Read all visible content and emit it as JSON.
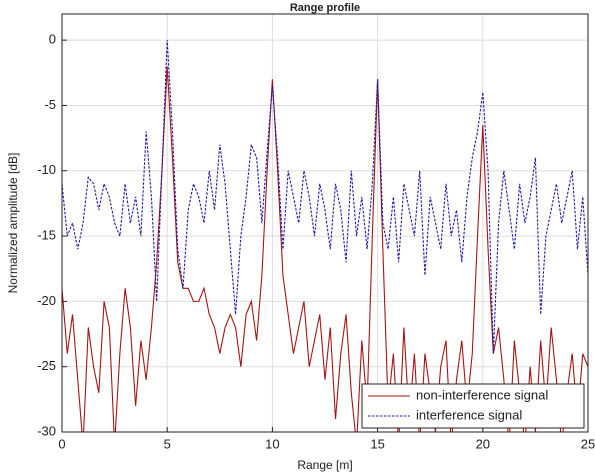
{
  "chart_data": {
    "type": "line",
    "title": "Range profile",
    "x_label": "Range [m]",
    "y_label": "Normalized amplitude [dB]",
    "x": [
      0,
      0.25,
      0.5,
      0.75,
      1,
      1.25,
      1.5,
      1.75,
      2,
      2.25,
      2.5,
      2.75,
      3,
      3.25,
      3.5,
      3.75,
      4,
      4.25,
      4.5,
      4.75,
      5,
      5.25,
      5.5,
      5.75,
      6,
      6.25,
      6.5,
      6.75,
      7,
      7.25,
      7.5,
      7.75,
      8,
      8.25,
      8.5,
      8.75,
      9,
      9.25,
      9.5,
      9.75,
      10,
      10.25,
      10.5,
      10.75,
      11,
      11.25,
      11.5,
      11.75,
      12,
      12.25,
      12.5,
      12.75,
      13,
      13.25,
      13.5,
      13.75,
      14,
      14.25,
      14.5,
      14.75,
      15,
      15.25,
      15.5,
      15.75,
      16,
      16.25,
      16.5,
      16.75,
      17,
      17.25,
      17.5,
      17.75,
      18,
      18.25,
      18.5,
      18.75,
      19,
      19.25,
      19.5,
      19.75,
      20,
      20.25,
      20.5,
      20.75,
      21,
      21.25,
      21.5,
      21.75,
      22,
      22.25,
      22.5,
      22.75,
      23,
      23.25,
      23.5,
      23.75,
      24,
      24.25,
      24.5,
      24.75,
      25
    ],
    "series": [
      {
        "name": "non-interference signal",
        "color": "#a31515",
        "dash": false,
        "values": [
          -19,
          -24,
          -21,
          -26,
          -31,
          -22,
          -25,
          -27,
          -20,
          -22,
          -31,
          -24,
          -19,
          -22,
          -28,
          -23,
          -26,
          -22,
          -17,
          -10,
          -2,
          -9,
          -17,
          -19,
          -19,
          -20,
          -20,
          -19,
          -21,
          -22,
          -24,
          -22,
          -21,
          -22,
          -25,
          -21,
          -20,
          -23,
          -18,
          -10,
          -3,
          -10,
          -18,
          -21,
          -24,
          -22,
          -20,
          -25,
          -23,
          -21,
          -26,
          -22,
          -29,
          -24,
          -21,
          -27,
          -31,
          -23,
          -28,
          -15,
          -3,
          -16,
          -28,
          -24,
          -31,
          -22,
          -29,
          -24,
          -31,
          -24,
          -27,
          -30,
          -25,
          -23,
          -31,
          -26,
          -23,
          -28,
          -24,
          -15,
          -6.5,
          -16,
          -24,
          -22,
          -26,
          -31,
          -23,
          -27,
          -31,
          -25,
          -30,
          -23,
          -28,
          -22,
          -26,
          -31,
          -27,
          -24,
          -29,
          -24,
          -25
        ]
      },
      {
        "name": "interference signal",
        "color": "#1a1aa8",
        "dash": true,
        "values": [
          -11,
          -15,
          -14,
          -16,
          -14,
          -10.5,
          -11,
          -13,
          -11,
          -12,
          -14,
          -15,
          -11,
          -14,
          -12,
          -15,
          -7,
          -12,
          -20,
          -10,
          0,
          -7,
          -16,
          -19,
          -13,
          -11,
          -12,
          -14,
          -10,
          -13,
          -8,
          -11,
          -16,
          -21,
          -15,
          -12,
          -8,
          -9,
          -14,
          -8.5,
          -3.5,
          -9,
          -16,
          -10,
          -12,
          -14,
          -10,
          -12,
          -15,
          -11,
          -13,
          -16,
          -11,
          -13,
          -17,
          -10,
          -15,
          -12,
          -16,
          -11,
          -3,
          -14,
          -16,
          -12,
          -17,
          -11,
          -13,
          -15,
          -10,
          -18,
          -12,
          -14,
          -16,
          -11,
          -15,
          -13,
          -17,
          -12,
          -9,
          -7,
          -4,
          -10,
          -24,
          -14,
          -10,
          -13,
          -16,
          -11,
          -14,
          -12,
          -9,
          -21,
          -15,
          -13,
          -11,
          -14,
          -12,
          -10,
          -16,
          -12,
          -18
        ]
      }
    ],
    "xlim": [
      0,
      25
    ],
    "ylim": [
      -30,
      2
    ],
    "xticks": [
      0,
      5,
      10,
      15,
      20,
      25
    ],
    "yticks": [
      -30,
      -25,
      -20,
      -15,
      -10,
      -5,
      0
    ],
    "grid": true,
    "legend": "lower right"
  }
}
